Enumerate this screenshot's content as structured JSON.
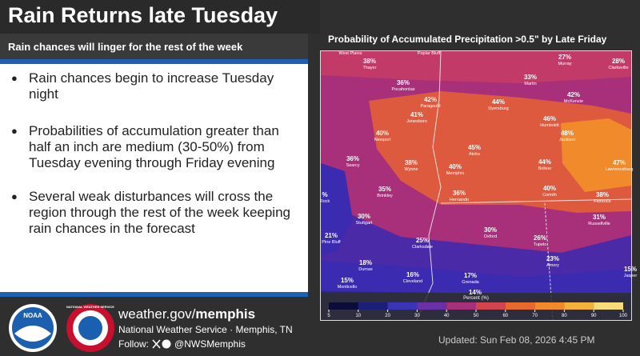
{
  "header": {
    "title": "Rain Returns late Tuesday",
    "subtitle": "Rain chances will linger for the rest of the week"
  },
  "bullets": [
    "Rain chances begin to increase Tuesday night",
    "Probabilities of accumulation greater than half an inch are medium (30-50%) from Tuesday evening through Friday evening",
    "Several weak disturbances will cross the region through the rest of the week keeping rain chances in the forecast"
  ],
  "map": {
    "title": "Probability of Accumulated Precipitation >0.5\" by Late Friday",
    "labels": [
      {
        "value": "",
        "name": "West Plains"
      },
      {
        "value": "38%",
        "name": "Thayer"
      },
      {
        "value": "",
        "name": "Poplar Bluff"
      },
      {
        "value": "27%",
        "name": "Murray"
      },
      {
        "value": "28%",
        "name": "Clarksville"
      },
      {
        "value": "36%",
        "name": "Pocahontas"
      },
      {
        "value": "33%",
        "name": "Martin"
      },
      {
        "value": "42%",
        "name": "Paragould"
      },
      {
        "value": "44%",
        "name": "Dyersburg"
      },
      {
        "value": "42%",
        "name": "McKenzie"
      },
      {
        "value": "41%",
        "name": "Jonesboro"
      },
      {
        "value": "46%",
        "name": "Humboldt"
      },
      {
        "value": "40%",
        "name": "Newport"
      },
      {
        "value": "48%",
        "name": "Jackson"
      },
      {
        "value": "45%",
        "name": "Atoka"
      },
      {
        "value": "36%",
        "name": "Searcy"
      },
      {
        "value": "38%",
        "name": "Wynne"
      },
      {
        "value": "40%",
        "name": "Memphis"
      },
      {
        "value": "44%",
        "name": "Bolivar"
      },
      {
        "value": "47%",
        "name": "Lawrenceburg"
      },
      {
        "value": "35%",
        "name": "Brinkley"
      },
      {
        "value": "36%",
        "name": "Hernando"
      },
      {
        "value": "40%",
        "name": "Corinth"
      },
      {
        "value": "38%",
        "name": "Florence"
      },
      {
        "value": "%",
        "name": "Rock"
      },
      {
        "value": "30%",
        "name": "Stuttgart"
      },
      {
        "value": "31%",
        "name": "Russellville"
      },
      {
        "value": "21%",
        "name": "Pine Bluff"
      },
      {
        "value": "30%",
        "name": "Oxford"
      },
      {
        "value": "25%",
        "name": "Clarksdale"
      },
      {
        "value": "26%",
        "name": "Tupelo"
      },
      {
        "value": "18%",
        "name": "Dumas"
      },
      {
        "value": "23%",
        "name": "Amory"
      },
      {
        "value": "15%",
        "name": "Jasper"
      },
      {
        "value": "16%",
        "name": "Cleveland"
      },
      {
        "value": "17%",
        "name": "Grenada"
      },
      {
        "value": "15%",
        "name": "Monticello"
      },
      {
        "value": "14%",
        "name": ""
      }
    ],
    "legend": {
      "title": "Percent (%)",
      "ticks": [
        5,
        10,
        20,
        30,
        40,
        50,
        60,
        70,
        80,
        90,
        100
      ],
      "colors": [
        "#0c0c3a",
        "#1c1f7a",
        "#3a34b8",
        "#6a30a8",
        "#a8307a",
        "#d2454f",
        "#e8692e",
        "#f28a2a",
        "#f5b23a",
        "#f8dc7a"
      ]
    }
  },
  "footer": {
    "site_prefix": "weather.gov/",
    "site_office": "memphis",
    "office": "National Weather Service · Memphis, TN",
    "follow": "Follow:",
    "handle": "@NWSMemphis",
    "updated": "Updated: Sun Feb 08, 2026 4:45 PM",
    "noaa": "NOAA",
    "nws": "NATIONAL WEATHER SERVICE"
  }
}
